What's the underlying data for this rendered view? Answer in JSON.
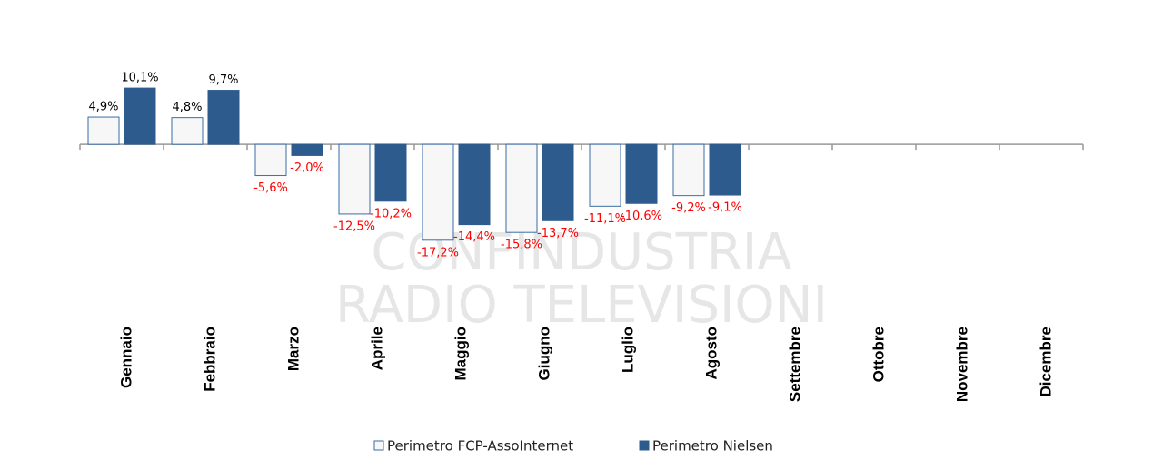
{
  "chart_data": {
    "type": "bar",
    "categories": [
      "Gennaio",
      "Febbraio",
      "Marzo",
      "Aprile",
      "Maggio",
      "Giugno",
      "Luglio",
      "Agosto",
      "Settembre",
      "Ottobre",
      "Novembre",
      "Dicembre"
    ],
    "series": [
      {
        "name": "Perimetro FCP-AssoInternet",
        "color": "#f7f7f7",
        "border": "#3a6ea5",
        "values": [
          4.9,
          4.8,
          -5.6,
          -12.5,
          -17.2,
          -15.8,
          -11.1,
          -9.2,
          null,
          null,
          null,
          null
        ],
        "value_labels": [
          "4,9%",
          "4,8%",
          "-5,6%",
          "-12,5%",
          "-17,2%",
          "-15,8%",
          "-11,1%",
          "-9,2%",
          null,
          null,
          null,
          null
        ]
      },
      {
        "name": "Perimetro Nielsen",
        "color": "#2e5b8e",
        "border": "#2e5b8e",
        "values": [
          10.1,
          9.7,
          -2.0,
          -10.2,
          -14.4,
          -13.7,
          -10.6,
          -9.1,
          null,
          null,
          null,
          null
        ],
        "value_labels": [
          "10,1%",
          "9,7%",
          "-2,0%",
          "-10,2%",
          "-14,4%",
          "-13,7%",
          "-10,6%",
          "-9,1%",
          null,
          null,
          null,
          null
        ]
      }
    ],
    "ylim": [
      -20,
      15
    ],
    "positive_label_color": "#000000",
    "negative_label_color": "#ff0000",
    "watermark": [
      "CONFINDUSTRIA",
      "RADIO TELEVISIONI"
    ]
  }
}
